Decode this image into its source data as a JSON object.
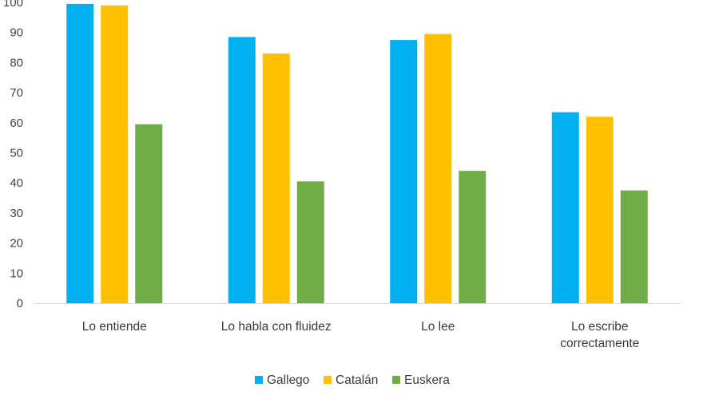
{
  "chart_data": {
    "type": "bar",
    "title": "",
    "xlabel": "",
    "ylabel": "",
    "categories": [
      [
        "Lo entiende"
      ],
      [
        "Lo habla con fluidez"
      ],
      [
        "Lo lee"
      ],
      [
        "Lo escribe",
        "correctamente"
      ]
    ],
    "series": [
      {
        "name": "Gallego",
        "color": "#00b0f0",
        "values": [
          99.5,
          88.5,
          87.5,
          63.5
        ]
      },
      {
        "name": "Catalán",
        "color": "#ffc000",
        "values": [
          99,
          83,
          89.5,
          62
        ]
      },
      {
        "name": "Euskera",
        "color": "#70ad47",
        "values": [
          59.5,
          40.5,
          44,
          37.5
        ]
      }
    ],
    "ylim": [
      0,
      100
    ],
    "yticks": [
      0,
      10,
      20,
      30,
      40,
      50,
      60,
      70,
      80,
      90,
      100
    ],
    "grid": false,
    "legend_position": "bottom",
    "axis_color": "#d9d9d9"
  }
}
